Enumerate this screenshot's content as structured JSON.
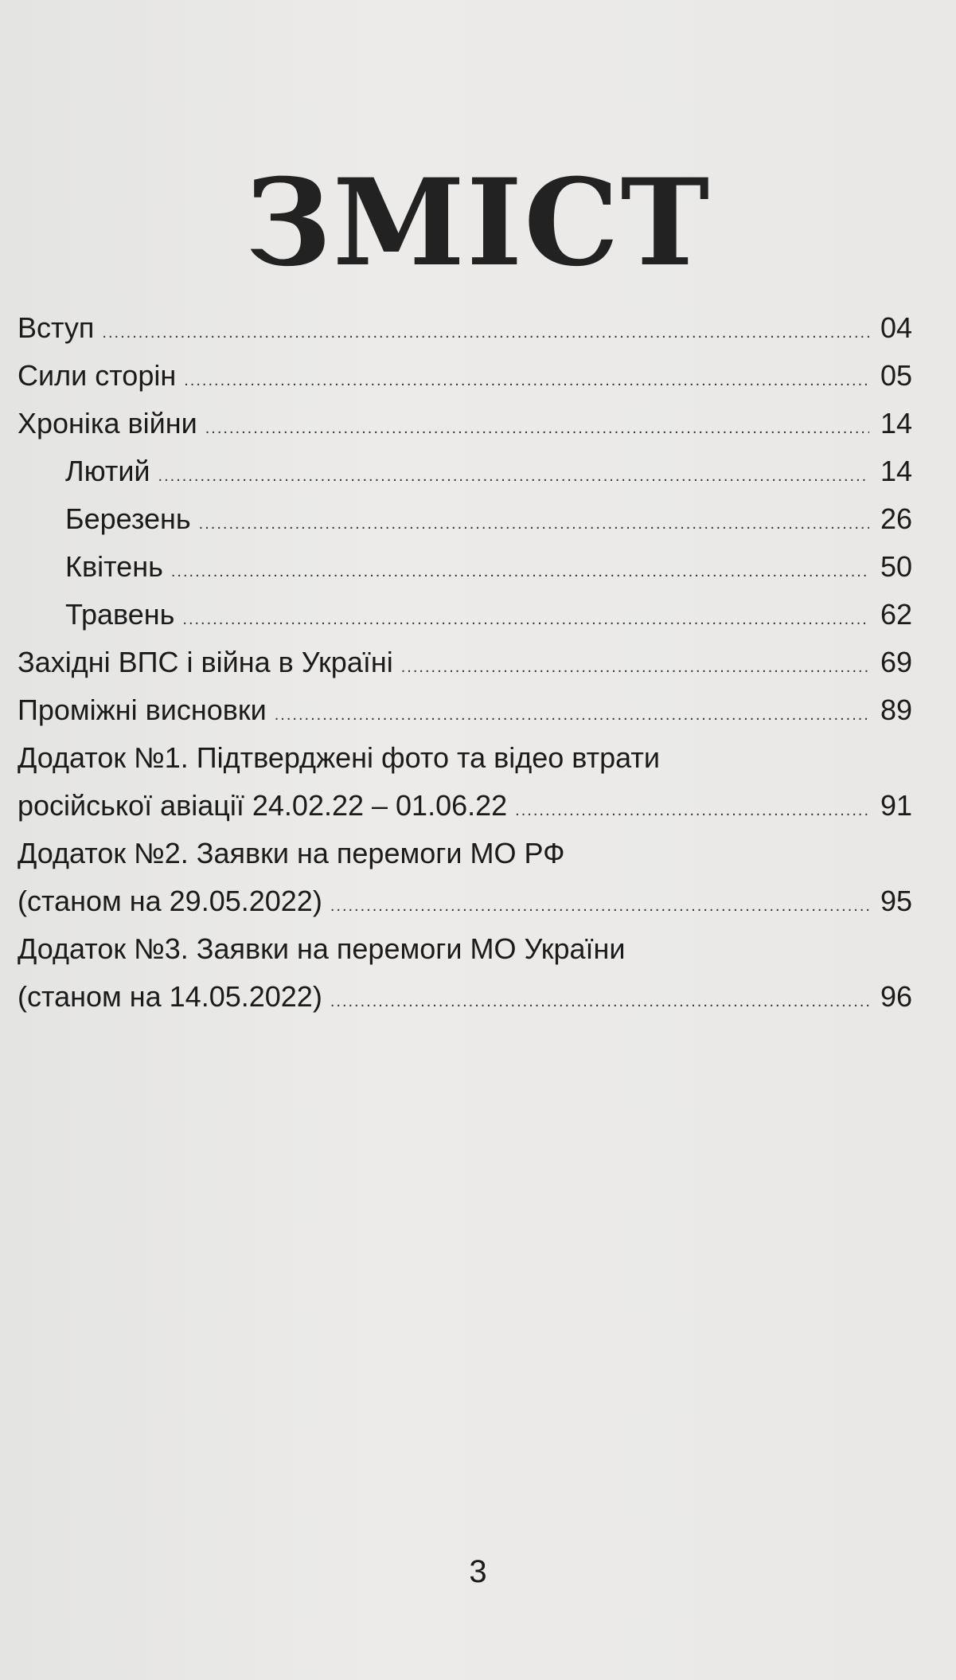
{
  "title": "ЗМІСТ",
  "entries": [
    {
      "label": "Вступ",
      "page": "04"
    },
    {
      "label": "Сили сторін",
      "page": "05"
    },
    {
      "label": "Хроніка війни",
      "page": "14"
    },
    {
      "label": "Лютий",
      "page": "14"
    },
    {
      "label": "Березень",
      "page": "26"
    },
    {
      "label": "Квітень",
      "page": "50"
    },
    {
      "label": "Травень",
      "page": "62"
    },
    {
      "label": "Західні ВПС і війна в Україні",
      "page": "69"
    },
    {
      "label": "Проміжні висновки",
      "page": "89"
    },
    {
      "label": "Додаток №1. Підтверджені фото та відео втрати"
    },
    {
      "label": "російської авіації 24.02.22 – 01.06.22",
      "page": "91"
    },
    {
      "label": "Додаток №2. Заявки на перемоги МО РФ"
    },
    {
      "label": "(станом на 29.05.2022)",
      "page": "95"
    },
    {
      "label": "Додаток №3. Заявки на перемоги МО України"
    },
    {
      "label": "(станом на 14.05.2022)",
      "page": "96"
    }
  ],
  "page_number": "3"
}
